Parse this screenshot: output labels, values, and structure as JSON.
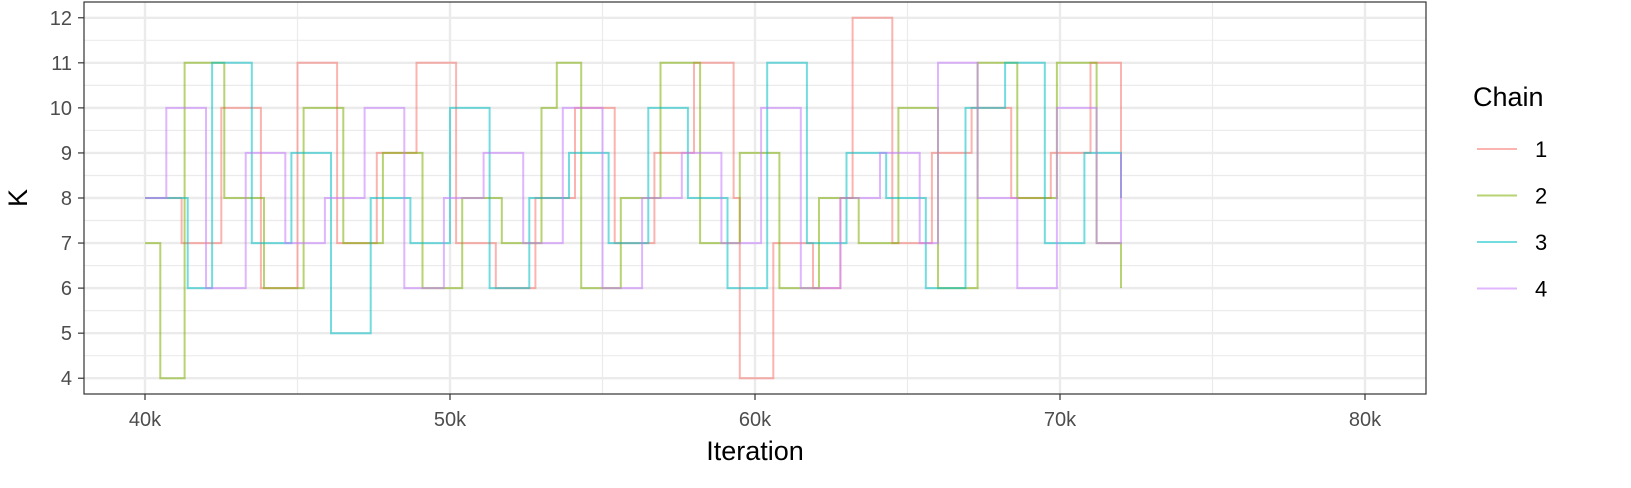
{
  "chart_data": {
    "type": "line",
    "title": "",
    "xlabel": "Iteration",
    "ylabel": "K",
    "xlim": [
      38000,
      82000
    ],
    "ylim": [
      3.65,
      12.35
    ],
    "x_ticks": [
      40000,
      50000,
      60000,
      70000,
      80000
    ],
    "x_tick_labels": [
      "40k",
      "50k",
      "60k",
      "70k",
      "80k"
    ],
    "y_ticks": [
      4,
      5,
      6,
      7,
      8,
      9,
      10,
      11,
      12
    ],
    "y_tick_labels": [
      "4",
      "5",
      "6",
      "7",
      "8",
      "9",
      "10",
      "11",
      "12"
    ],
    "grid": true,
    "legend": {
      "title": "Chain",
      "placement": "right",
      "entries": [
        "1",
        "2",
        "3",
        "4"
      ]
    },
    "series": [
      {
        "name": "1",
        "color": "#F8766D",
        "x": [
          40000,
          41200,
          42500,
          43800,
          45000,
          46300,
          47600,
          48900,
          50200,
          51500,
          52800,
          54100,
          55400,
          56700,
          58000,
          59300,
          59500,
          60600,
          61900,
          62800,
          63200,
          64500,
          65800,
          67100,
          68400,
          69700,
          71000,
          72000
        ],
        "values": [
          8,
          7,
          10,
          6,
          11,
          7,
          9,
          11,
          7,
          6,
          8,
          10,
          7,
          9,
          11,
          8,
          4,
          7,
          6,
          8,
          12,
          7,
          9,
          10,
          8,
          9,
          11,
          8
        ]
      },
      {
        "name": "2",
        "color": "#7CAE00",
        "x": [
          40000,
          40500,
          41300,
          42600,
          43900,
          45200,
          46500,
          47800,
          49100,
          50400,
          51700,
          53000,
          53500,
          54300,
          55600,
          56900,
          58200,
          59500,
          60800,
          62100,
          63400,
          64700,
          66000,
          67300,
          68600,
          69900,
          71200,
          72000
        ],
        "values": [
          7,
          4,
          11,
          8,
          6,
          10,
          7,
          9,
          6,
          8,
          7,
          10,
          11,
          6,
          8,
          11,
          7,
          9,
          6,
          8,
          7,
          10,
          6,
          11,
          8,
          11,
          7,
          6
        ]
      },
      {
        "name": "3",
        "color": "#00BFC4",
        "x": [
          40000,
          41400,
          42200,
          43500,
          44800,
          46100,
          47400,
          48700,
          50000,
          51300,
          52600,
          53900,
          55200,
          56500,
          57800,
          59100,
          60400,
          61700,
          63000,
          64300,
          65600,
          66900,
          68200,
          69500,
          70800,
          72000
        ],
        "values": [
          8,
          6,
          11,
          7,
          9,
          5,
          8,
          7,
          10,
          6,
          8,
          9,
          7,
          10,
          8,
          6,
          11,
          7,
          9,
          8,
          6,
          10,
          11,
          7,
          9,
          8
        ]
      },
      {
        "name": "4",
        "color": "#C77CFF",
        "x": [
          40000,
          40700,
          42000,
          43300,
          44600,
          45900,
          47200,
          48500,
          49800,
          51100,
          52400,
          53700,
          55000,
          56300,
          57600,
          58900,
          60200,
          61500,
          62800,
          64100,
          65400,
          66000,
          67300,
          68600,
          69900,
          71200,
          72000
        ],
        "values": [
          8,
          10,
          6,
          9,
          7,
          8,
          10,
          6,
          8,
          9,
          7,
          10,
          6,
          8,
          9,
          7,
          10,
          6,
          8,
          9,
          7,
          11,
          8,
          6,
          10,
          7,
          9
        ]
      }
    ]
  }
}
